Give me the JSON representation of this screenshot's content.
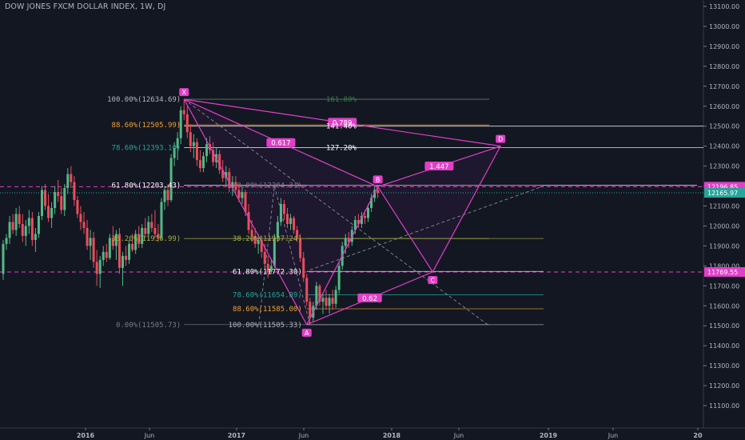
{
  "chart_data": {
    "type": "candlestick",
    "title": "DOW JONES FXCM DOLLAR INDEX, 1W, DJ",
    "colors": {
      "background": "#131722",
      "up": "#53b987",
      "down": "#eb4d5c",
      "pattern": "#e040c8",
      "axis_text": "#b2b5be",
      "last_price": "#26a69a"
    },
    "y_axis": {
      "side": "right",
      "ylim": [
        11050,
        13120
      ],
      "ticks": [
        "11100.00",
        "11200.00",
        "11300.00",
        "11400.00",
        "11500.00",
        "11600.00",
        "11700.00",
        "11800.00",
        "11900.00",
        "12000.00",
        "12100.00",
        "12200.00",
        "12300.00",
        "12400.00",
        "12500.00",
        "12600.00",
        "12700.00",
        "12800.00",
        "12900.00",
        "13000.00",
        "13100.00"
      ]
    },
    "x_axis": {
      "ticks": [
        "2016",
        "Jun",
        "2017",
        "Jun",
        "2018",
        "Jun",
        "2019",
        "Jun",
        "20"
      ],
      "bold": [
        "2016",
        "2017",
        "2018",
        "2019",
        "20"
      ]
    },
    "price_labels": [
      {
        "text": "12196.85",
        "value": 12196.85,
        "color": "#e040c8"
      },
      {
        "text": "12165.97",
        "value": 12165.97,
        "color": "#26a69a"
      },
      {
        "text": "11769.55",
        "value": 11769.55,
        "color": "#e040c8"
      }
    ],
    "candles": [
      {
        "o": 11760,
        "h": 11930,
        "l": 11730,
        "c": 11910
      },
      {
        "o": 11910,
        "h": 11960,
        "l": 11880,
        "c": 11940
      },
      {
        "o": 11940,
        "h": 12050,
        "l": 11910,
        "c": 12020
      },
      {
        "o": 12020,
        "h": 12060,
        "l": 11960,
        "c": 11980
      },
      {
        "o": 11980,
        "h": 12090,
        "l": 11950,
        "c": 12060
      },
      {
        "o": 12060,
        "h": 12100,
        "l": 11990,
        "c": 12010
      },
      {
        "o": 12010,
        "h": 12060,
        "l": 11920,
        "c": 11950
      },
      {
        "o": 11950,
        "h": 12030,
        "l": 11900,
        "c": 12000
      },
      {
        "o": 12000,
        "h": 12080,
        "l": 11960,
        "c": 12040
      },
      {
        "o": 12040,
        "h": 12070,
        "l": 11900,
        "c": 11930
      },
      {
        "o": 11930,
        "h": 11990,
        "l": 11870,
        "c": 11960
      },
      {
        "o": 11960,
        "h": 12070,
        "l": 11940,
        "c": 12050
      },
      {
        "o": 12050,
        "h": 12200,
        "l": 12030,
        "c": 12180
      },
      {
        "o": 12180,
        "h": 12210,
        "l": 12080,
        "c": 12100
      },
      {
        "o": 12100,
        "h": 12160,
        "l": 12020,
        "c": 12040
      },
      {
        "o": 12040,
        "h": 12120,
        "l": 11990,
        "c": 12090
      },
      {
        "o": 12090,
        "h": 12200,
        "l": 12060,
        "c": 12170
      },
      {
        "o": 12170,
        "h": 12230,
        "l": 12120,
        "c": 12150
      },
      {
        "o": 12150,
        "h": 12190,
        "l": 12060,
        "c": 12080
      },
      {
        "o": 12080,
        "h": 12210,
        "l": 12050,
        "c": 12190
      },
      {
        "o": 12190,
        "h": 12290,
        "l": 12160,
        "c": 12260
      },
      {
        "o": 12260,
        "h": 12300,
        "l": 12190,
        "c": 12220
      },
      {
        "o": 12220,
        "h": 12250,
        "l": 12100,
        "c": 12130
      },
      {
        "o": 12130,
        "h": 12150,
        "l": 12040,
        "c": 12060
      },
      {
        "o": 12060,
        "h": 12100,
        "l": 11980,
        "c": 12020
      },
      {
        "o": 12020,
        "h": 12070,
        "l": 11960,
        "c": 11990
      },
      {
        "o": 11990,
        "h": 12030,
        "l": 11880,
        "c": 11900
      },
      {
        "o": 11900,
        "h": 11980,
        "l": 11830,
        "c": 11940
      },
      {
        "o": 11940,
        "h": 11970,
        "l": 11790,
        "c": 11820
      },
      {
        "o": 11820,
        "h": 11880,
        "l": 11700,
        "c": 11760
      },
      {
        "o": 11760,
        "h": 11850,
        "l": 11690,
        "c": 11830
      },
      {
        "o": 11830,
        "h": 11900,
        "l": 11800,
        "c": 11870
      },
      {
        "o": 11870,
        "h": 11910,
        "l": 11820,
        "c": 11840
      },
      {
        "o": 11840,
        "h": 11960,
        "l": 11830,
        "c": 11940
      },
      {
        "o": 11940,
        "h": 12000,
        "l": 11880,
        "c": 11900
      },
      {
        "o": 11900,
        "h": 11980,
        "l": 11830,
        "c": 11960
      },
      {
        "o": 11960,
        "h": 11990,
        "l": 11760,
        "c": 11790
      },
      {
        "o": 11790,
        "h": 11870,
        "l": 11700,
        "c": 11850
      },
      {
        "o": 11850,
        "h": 11900,
        "l": 11800,
        "c": 11830
      },
      {
        "o": 11830,
        "h": 11930,
        "l": 11810,
        "c": 11910
      },
      {
        "o": 11910,
        "h": 11960,
        "l": 11870,
        "c": 11880
      },
      {
        "o": 11880,
        "h": 11980,
        "l": 11860,
        "c": 11960
      },
      {
        "o": 11960,
        "h": 12000,
        "l": 11890,
        "c": 11910
      },
      {
        "o": 11910,
        "h": 12010,
        "l": 11890,
        "c": 11990
      },
      {
        "o": 11990,
        "h": 12040,
        "l": 11940,
        "c": 11960
      },
      {
        "o": 11960,
        "h": 12050,
        "l": 11930,
        "c": 12020
      },
      {
        "o": 12020,
        "h": 12060,
        "l": 11970,
        "c": 11990
      },
      {
        "o": 11990,
        "h": 12080,
        "l": 11940,
        "c": 11960
      },
      {
        "o": 11960,
        "h": 12010,
        "l": 11920,
        "c": 11940
      },
      {
        "o": 11940,
        "h": 12140,
        "l": 11930,
        "c": 12120
      },
      {
        "o": 12120,
        "h": 12200,
        "l": 12080,
        "c": 12180
      },
      {
        "o": 12180,
        "h": 12210,
        "l": 12100,
        "c": 12130
      },
      {
        "o": 12130,
        "h": 12360,
        "l": 12120,
        "c": 12340
      },
      {
        "o": 12340,
        "h": 12420,
        "l": 12300,
        "c": 12390
      },
      {
        "o": 12390,
        "h": 12470,
        "l": 12330,
        "c": 12440
      },
      {
        "o": 12440,
        "h": 12600,
        "l": 12410,
        "c": 12580
      },
      {
        "o": 12580,
        "h": 12634.69,
        "l": 12530,
        "c": 12560
      },
      {
        "o": 12560,
        "h": 12600,
        "l": 12440,
        "c": 12470
      },
      {
        "o": 12470,
        "h": 12510,
        "l": 12370,
        "c": 12400
      },
      {
        "o": 12400,
        "h": 12460,
        "l": 12340,
        "c": 12420
      },
      {
        "o": 12420,
        "h": 12440,
        "l": 12300,
        "c": 12330
      },
      {
        "o": 12330,
        "h": 12380,
        "l": 12270,
        "c": 12290
      },
      {
        "o": 12290,
        "h": 12370,
        "l": 12270,
        "c": 12350
      },
      {
        "o": 12350,
        "h": 12440,
        "l": 12320,
        "c": 12410
      },
      {
        "o": 12410,
        "h": 12450,
        "l": 12360,
        "c": 12380
      },
      {
        "o": 12380,
        "h": 12420,
        "l": 12300,
        "c": 12320
      },
      {
        "o": 12320,
        "h": 12390,
        "l": 12290,
        "c": 12360
      },
      {
        "o": 12360,
        "h": 12380,
        "l": 12260,
        "c": 12280
      },
      {
        "o": 12280,
        "h": 12330,
        "l": 12220,
        "c": 12240
      },
      {
        "o": 12240,
        "h": 12300,
        "l": 12200,
        "c": 12270
      },
      {
        "o": 12270,
        "h": 12290,
        "l": 12170,
        "c": 12190
      },
      {
        "o": 12190,
        "h": 12250,
        "l": 12150,
        "c": 12220
      },
      {
        "o": 12220,
        "h": 12250,
        "l": 12160,
        "c": 12180
      },
      {
        "o": 12180,
        "h": 12210,
        "l": 12120,
        "c": 12140
      },
      {
        "o": 12140,
        "h": 12200,
        "l": 12110,
        "c": 12170
      },
      {
        "o": 12170,
        "h": 12180,
        "l": 12050,
        "c": 12070
      },
      {
        "o": 12070,
        "h": 12110,
        "l": 11960,
        "c": 11980
      },
      {
        "o": 11980,
        "h": 12030,
        "l": 11920,
        "c": 11950
      },
      {
        "o": 11950,
        "h": 11990,
        "l": 11890,
        "c": 11910
      },
      {
        "o": 11910,
        "h": 11960,
        "l": 11860,
        "c": 11930
      },
      {
        "o": 11930,
        "h": 11950,
        "l": 11840,
        "c": 11870
      },
      {
        "o": 11870,
        "h": 11910,
        "l": 11790,
        "c": 11810
      },
      {
        "o": 11810,
        "h": 11850,
        "l": 11740,
        "c": 11770
      },
      {
        "o": 11770,
        "h": 11830,
        "l": 11760,
        "c": 11800
      },
      {
        "o": 11800,
        "h": 11960,
        "l": 11790,
        "c": 11940
      },
      {
        "o": 11940,
        "h": 12050,
        "l": 11920,
        "c": 12020
      },
      {
        "o": 12020,
        "h": 12140,
        "l": 12000,
        "c": 12110
      },
      {
        "o": 12110,
        "h": 12130,
        "l": 12030,
        "c": 12060
      },
      {
        "o": 12060,
        "h": 12090,
        "l": 11990,
        "c": 12010
      },
      {
        "o": 12010,
        "h": 12060,
        "l": 11980,
        "c": 12040
      },
      {
        "o": 12040,
        "h": 12050,
        "l": 11960,
        "c": 11980
      },
      {
        "o": 11980,
        "h": 12000,
        "l": 11920,
        "c": 11940
      },
      {
        "o": 11940,
        "h": 11960,
        "l": 11820,
        "c": 11840
      },
      {
        "o": 11840,
        "h": 11870,
        "l": 11720,
        "c": 11740
      },
      {
        "o": 11740,
        "h": 11760,
        "l": 11600,
        "c": 11620
      },
      {
        "o": 11620,
        "h": 11640,
        "l": 11505.33,
        "c": 11540
      },
      {
        "o": 11540,
        "h": 11620,
        "l": 11520,
        "c": 11600
      },
      {
        "o": 11600,
        "h": 11720,
        "l": 11580,
        "c": 11700
      },
      {
        "o": 11700,
        "h": 11710,
        "l": 11600,
        "c": 11620
      },
      {
        "o": 11620,
        "h": 11660,
        "l": 11560,
        "c": 11640
      },
      {
        "o": 11640,
        "h": 11680,
        "l": 11580,
        "c": 11600
      },
      {
        "o": 11600,
        "h": 11660,
        "l": 11560,
        "c": 11640
      },
      {
        "o": 11640,
        "h": 11680,
        "l": 11580,
        "c": 11610
      },
      {
        "o": 11610,
        "h": 11700,
        "l": 11590,
        "c": 11680
      },
      {
        "o": 11680,
        "h": 11820,
        "l": 11660,
        "c": 11800
      },
      {
        "o": 11800,
        "h": 11920,
        "l": 11780,
        "c": 11900
      },
      {
        "o": 11900,
        "h": 11960,
        "l": 11860,
        "c": 11940
      },
      {
        "o": 11940,
        "h": 11970,
        "l": 11890,
        "c": 11920
      },
      {
        "o": 11920,
        "h": 12000,
        "l": 11900,
        "c": 11980
      },
      {
        "o": 11980,
        "h": 12050,
        "l": 11960,
        "c": 12030
      },
      {
        "o": 12030,
        "h": 12060,
        "l": 11990,
        "c": 12010
      },
      {
        "o": 12010,
        "h": 12070,
        "l": 11990,
        "c": 12050
      },
      {
        "o": 12050,
        "h": 12080,
        "l": 12010,
        "c": 12040
      },
      {
        "o": 12040,
        "h": 12110,
        "l": 12020,
        "c": 12090
      },
      {
        "o": 12090,
        "h": 12160,
        "l": 12070,
        "c": 12140
      },
      {
        "o": 12140,
        "h": 12196.85,
        "l": 12120,
        "c": 12180
      },
      {
        "o": 12180,
        "h": 12200,
        "l": 12140,
        "c": 12165.97
      }
    ],
    "pattern": {
      "name": "XABCD",
      "points": [
        {
          "label": "X",
          "bar": 56,
          "price": 12634.69
        },
        {
          "label": "A",
          "bar": 94,
          "price": 11505.33
        },
        {
          "label": "B",
          "bar": 116,
          "price": 12196.85
        },
        {
          "label": "C",
          "bar": 133,
          "price": 11769.55
        },
        {
          "label": "D",
          "bar": 154,
          "price": 12400.0
        }
      ],
      "ratios": [
        {
          "text": "0.617",
          "between": "X-B"
        },
        {
          "text": "0.62",
          "between": "A-C"
        },
        {
          "text": "1.447",
          "between": "B-D"
        },
        {
          "text": "0.789",
          "between": "X-D"
        }
      ]
    },
    "fib_left": {
      "color_x": "#b2b5be",
      "levels": [
        {
          "text": "100.00%(12634.69)",
          "price": 12634.69,
          "color": "#b2b5be"
        },
        {
          "text": "88.60%(12505.99)",
          "price": 12505.99,
          "color": "#f0a030"
        },
        {
          "text": "78.60%(12393.10)",
          "price": 12393.1,
          "color": "#26a69a"
        },
        {
          "text": "61.80%(12203.43)",
          "price": 12203.43,
          "color": "#ffffff"
        },
        {
          "text": "38.20%(11936.99)",
          "price": 11936.99,
          "color": "#a5b040"
        },
        {
          "text": "0.00%(11505.73)",
          "price": 11505.73,
          "color": "#787b86"
        }
      ]
    },
    "fib_right": {
      "levels": [
        {
          "text": "100.00%(11505.33)",
          "price": 11505.33,
          "color": "#b2b5be"
        },
        {
          "text": "88.60%(11585.00)",
          "price": 11585.0,
          "color": "#f0a030"
        },
        {
          "text": "78.60%(11654.89)",
          "price": 11654.89,
          "color": "#26a69a"
        },
        {
          "text": "61.80%(11772.30)",
          "price": 11772.3,
          "color": "#ffffff"
        },
        {
          "text": "38.20%(11937.24)",
          "price": 11937.24,
          "color": "#a5b040"
        },
        {
          "text": "0.00%(12204.31)",
          "price": 12204.31,
          "color": "#787b86"
        }
      ]
    },
    "fib_ext": {
      "levels": [
        {
          "text": "161.80%",
          "price": 12634.69,
          "color": "#3a7d44"
        },
        {
          "text": "141.40%",
          "price": 12500.0,
          "color": "#ffffff"
        },
        {
          "text": "127.20%",
          "price": 12393.1,
          "color": "#ffffff"
        }
      ]
    }
  }
}
